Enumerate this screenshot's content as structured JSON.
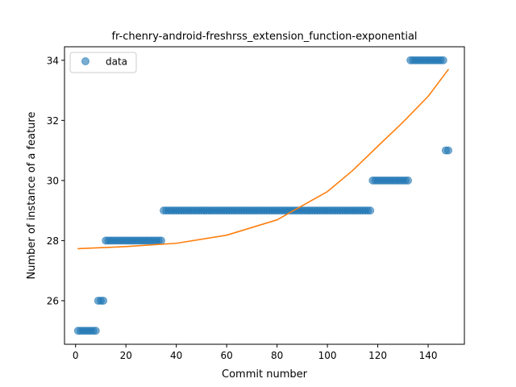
{
  "chart_data": {
    "type": "scatter",
    "title": "fr-chenry-android-freshrss_extension_function-exponential",
    "xlabel": "Commit number",
    "ylabel": "Number of instance of a feature",
    "xlim": [
      -4.4,
      154.4
    ],
    "ylim": [
      24.55,
      34.45
    ],
    "xticks": [
      0,
      20,
      40,
      60,
      80,
      100,
      120,
      140
    ],
    "yticks": [
      26,
      28,
      30,
      32,
      34
    ],
    "grid": false,
    "legend": {
      "position": "top-left",
      "entries": [
        "data"
      ]
    },
    "colors": {
      "data": "#1f77b4",
      "fit": "#ff7f0e"
    },
    "series": [
      {
        "name": "data",
        "kind": "scatter",
        "segments": [
          {
            "x_start": 1,
            "x_end": 8,
            "y": 25
          },
          {
            "x_start": 9,
            "x_end": 11,
            "y": 26
          },
          {
            "x_start": 12,
            "x_end": 34,
            "y": 28
          },
          {
            "x_start": 35,
            "x_end": 117,
            "y": 29
          },
          {
            "x_start": 118,
            "x_end": 132,
            "y": 30
          },
          {
            "x_start": 133,
            "x_end": 146,
            "y": 34
          },
          {
            "x_start": 147,
            "x_end": 148,
            "y": 31
          }
        ]
      },
      {
        "kind": "line",
        "x": [
          1,
          20,
          40,
          60,
          80,
          100,
          110,
          120,
          130,
          140,
          148
        ],
        "y": [
          27.73,
          27.8,
          27.91,
          28.18,
          28.69,
          29.63,
          30.33,
          31.14,
          31.94,
          32.8,
          33.69
        ]
      }
    ]
  }
}
